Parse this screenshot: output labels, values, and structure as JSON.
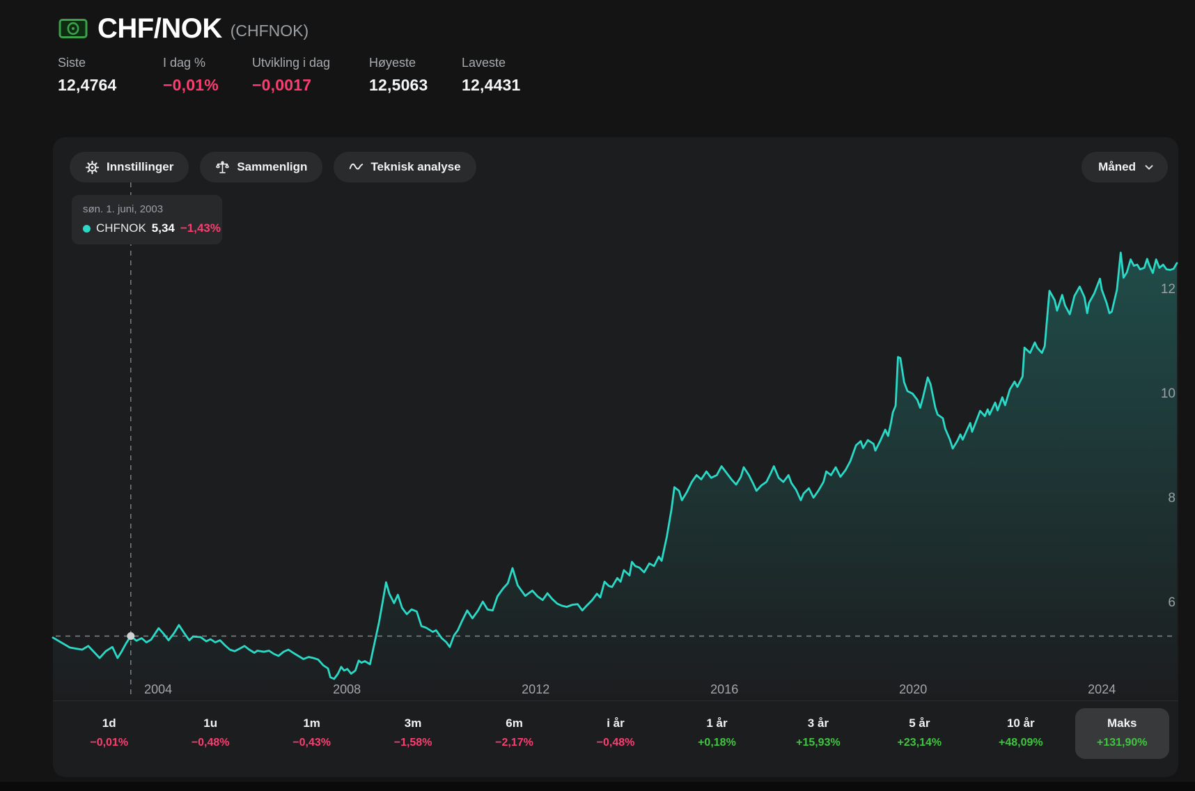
{
  "header": {
    "title": "CHF/NOK",
    "ticker": "(CHFNOK)",
    "icon": "money-banknote-icon"
  },
  "stats": {
    "items": [
      {
        "label": "Siste",
        "value": "12,4764",
        "tone": "neutral"
      },
      {
        "label": "I dag %",
        "value": "−0,01%",
        "tone": "neg"
      },
      {
        "label": "Utvikling i dag",
        "value": "−0,0017",
        "tone": "neg"
      },
      {
        "label": "Høyeste",
        "value": "12,5063",
        "tone": "neutral"
      },
      {
        "label": "Laveste",
        "value": "12,4431",
        "tone": "neutral"
      }
    ]
  },
  "toolbar": {
    "settings_label": "Innstillinger",
    "compare_label": "Sammenlign",
    "technical_label": "Teknisk analyse",
    "interval_label": "Måned"
  },
  "tooltip": {
    "date": "søn. 1. juni, 2003",
    "series": "CHFNOK",
    "value": "5,34",
    "change": "−1,43%"
  },
  "periods": {
    "items": [
      {
        "label": "1d",
        "value": "−0,01%",
        "tone": "neg",
        "selected": false
      },
      {
        "label": "1u",
        "value": "−0,48%",
        "tone": "neg",
        "selected": false
      },
      {
        "label": "1m",
        "value": "−0,43%",
        "tone": "neg",
        "selected": false
      },
      {
        "label": "3m",
        "value": "−1,58%",
        "tone": "neg",
        "selected": false
      },
      {
        "label": "6m",
        "value": "−2,17%",
        "tone": "neg",
        "selected": false
      },
      {
        "label": "i år",
        "value": "−0,48%",
        "tone": "neg",
        "selected": false
      },
      {
        "label": "1 år",
        "value": "+0,18%",
        "tone": "pos",
        "selected": false
      },
      {
        "label": "3 år",
        "value": "+15,93%",
        "tone": "pos",
        "selected": false
      },
      {
        "label": "5 år",
        "value": "+23,14%",
        "tone": "pos",
        "selected": false
      },
      {
        "label": "10 år",
        "value": "+48,09%",
        "tone": "pos",
        "selected": false
      },
      {
        "label": "Maks",
        "value": "+131,90%",
        "tone": "pos",
        "selected": true
      }
    ]
  },
  "colors": {
    "line": "#2bd9c7",
    "negative": "#fb3e71",
    "positive": "#3fc53f",
    "crosshair": "#85878a",
    "y_axis_text": "#9aa0a6",
    "x_axis_text": "#a2a7ab",
    "dot": "#cdd3d3"
  },
  "chart_data": {
    "type": "area",
    "series_name": "CHFNOK",
    "x_domain": [
      2001.77,
      2025.62
    ],
    "y_domain": [
      4.16,
      14.89
    ],
    "x_ticks": [
      2004,
      2008,
      2012,
      2016,
      2020,
      2024
    ],
    "y_ticks": [
      6,
      8,
      10,
      12
    ],
    "crosshair": {
      "t": 2003.42,
      "value": 5.34
    },
    "points": [
      [
        2001.77,
        5.31
      ],
      [
        2002.13,
        5.12
      ],
      [
        2002.39,
        5.08
      ],
      [
        2002.52,
        5.15
      ],
      [
        2002.76,
        4.92
      ],
      [
        2002.89,
        5.05
      ],
      [
        2003.03,
        5.13
      ],
      [
        2003.14,
        4.92
      ],
      [
        2003.23,
        5.05
      ],
      [
        2003.32,
        5.2
      ],
      [
        2003.42,
        5.34
      ],
      [
        2003.54,
        5.25
      ],
      [
        2003.65,
        5.3
      ],
      [
        2003.75,
        5.22
      ],
      [
        2003.85,
        5.27
      ],
      [
        2004.01,
        5.49
      ],
      [
        2004.12,
        5.38
      ],
      [
        2004.22,
        5.26
      ],
      [
        2004.34,
        5.4
      ],
      [
        2004.44,
        5.55
      ],
      [
        2004.55,
        5.4
      ],
      [
        2004.66,
        5.26
      ],
      [
        2004.74,
        5.33
      ],
      [
        2004.9,
        5.32
      ],
      [
        2005.02,
        5.24
      ],
      [
        2005.11,
        5.28
      ],
      [
        2005.21,
        5.22
      ],
      [
        2005.31,
        5.26
      ],
      [
        2005.42,
        5.16
      ],
      [
        2005.52,
        5.08
      ],
      [
        2005.62,
        5.05
      ],
      [
        2005.73,
        5.1
      ],
      [
        2005.83,
        5.15
      ],
      [
        2005.93,
        5.08
      ],
      [
        2006.04,
        5.02
      ],
      [
        2006.1,
        5.06
      ],
      [
        2006.24,
        5.04
      ],
      [
        2006.35,
        5.06
      ],
      [
        2006.45,
        5.0
      ],
      [
        2006.55,
        4.96
      ],
      [
        2006.66,
        5.04
      ],
      [
        2006.76,
        5.08
      ],
      [
        2006.86,
        5.02
      ],
      [
        2006.97,
        4.96
      ],
      [
        2007.08,
        4.9
      ],
      [
        2007.19,
        4.94
      ],
      [
        2007.29,
        4.92
      ],
      [
        2007.39,
        4.89
      ],
      [
        2007.5,
        4.78
      ],
      [
        2007.6,
        4.72
      ],
      [
        2007.65,
        4.55
      ],
      [
        2007.73,
        4.52
      ],
      [
        2007.81,
        4.62
      ],
      [
        2007.88,
        4.75
      ],
      [
        2007.94,
        4.68
      ],
      [
        2008.01,
        4.71
      ],
      [
        2008.09,
        4.62
      ],
      [
        2008.18,
        4.68
      ],
      [
        2008.25,
        4.87
      ],
      [
        2008.31,
        4.83
      ],
      [
        2008.38,
        4.86
      ],
      [
        2008.49,
        4.8
      ],
      [
        2008.56,
        5.1
      ],
      [
        2008.68,
        5.6
      ],
      [
        2008.75,
        5.95
      ],
      [
        2008.83,
        6.37
      ],
      [
        2008.9,
        6.15
      ],
      [
        2009.0,
        5.97
      ],
      [
        2009.08,
        6.13
      ],
      [
        2009.17,
        5.88
      ],
      [
        2009.27,
        5.76
      ],
      [
        2009.37,
        5.85
      ],
      [
        2009.48,
        5.81
      ],
      [
        2009.58,
        5.53
      ],
      [
        2009.68,
        5.5
      ],
      [
        2009.82,
        5.42
      ],
      [
        2009.89,
        5.45
      ],
      [
        2010.01,
        5.3
      ],
      [
        2010.11,
        5.22
      ],
      [
        2010.18,
        5.13
      ],
      [
        2010.27,
        5.35
      ],
      [
        2010.35,
        5.45
      ],
      [
        2010.44,
        5.63
      ],
      [
        2010.55,
        5.83
      ],
      [
        2010.66,
        5.68
      ],
      [
        2010.78,
        5.83
      ],
      [
        2010.88,
        6.0
      ],
      [
        2010.98,
        5.85
      ],
      [
        2011.09,
        5.83
      ],
      [
        2011.19,
        6.1
      ],
      [
        2011.31,
        6.25
      ],
      [
        2011.41,
        6.35
      ],
      [
        2011.51,
        6.64
      ],
      [
        2011.62,
        6.31
      ],
      [
        2011.78,
        6.11
      ],
      [
        2011.93,
        6.21
      ],
      [
        2012.04,
        6.1
      ],
      [
        2012.15,
        6.03
      ],
      [
        2012.25,
        6.16
      ],
      [
        2012.35,
        6.05
      ],
      [
        2012.46,
        5.96
      ],
      [
        2012.56,
        5.92
      ],
      [
        2012.66,
        5.9
      ],
      [
        2012.78,
        5.94
      ],
      [
        2012.89,
        5.95
      ],
      [
        2012.99,
        5.83
      ],
      [
        2013.09,
        5.93
      ],
      [
        2013.2,
        6.03
      ],
      [
        2013.3,
        6.15
      ],
      [
        2013.37,
        6.08
      ],
      [
        2013.46,
        6.38
      ],
      [
        2013.55,
        6.3
      ],
      [
        2013.62,
        6.28
      ],
      [
        2013.73,
        6.45
      ],
      [
        2013.8,
        6.38
      ],
      [
        2013.87,
        6.6
      ],
      [
        2013.99,
        6.5
      ],
      [
        2014.04,
        6.76
      ],
      [
        2014.11,
        6.68
      ],
      [
        2014.2,
        6.65
      ],
      [
        2014.3,
        6.56
      ],
      [
        2014.41,
        6.73
      ],
      [
        2014.51,
        6.68
      ],
      [
        2014.61,
        6.86
      ],
      [
        2014.67,
        6.78
      ],
      [
        2014.78,
        7.24
      ],
      [
        2014.88,
        7.77
      ],
      [
        2014.94,
        8.19
      ],
      [
        2015.04,
        8.12
      ],
      [
        2015.1,
        7.94
      ],
      [
        2015.2,
        8.09
      ],
      [
        2015.31,
        8.29
      ],
      [
        2015.41,
        8.42
      ],
      [
        2015.51,
        8.34
      ],
      [
        2015.62,
        8.49
      ],
      [
        2015.72,
        8.37
      ],
      [
        2015.84,
        8.42
      ],
      [
        2015.94,
        8.59
      ],
      [
        2016.04,
        8.47
      ],
      [
        2016.15,
        8.34
      ],
      [
        2016.25,
        8.24
      ],
      [
        2016.35,
        8.39
      ],
      [
        2016.41,
        8.57
      ],
      [
        2016.52,
        8.42
      ],
      [
        2016.62,
        8.24
      ],
      [
        2016.68,
        8.12
      ],
      [
        2016.78,
        8.22
      ],
      [
        2016.89,
        8.29
      ],
      [
        2016.99,
        8.47
      ],
      [
        2017.05,
        8.59
      ],
      [
        2017.15,
        8.37
      ],
      [
        2017.25,
        8.29
      ],
      [
        2017.36,
        8.42
      ],
      [
        2017.42,
        8.27
      ],
      [
        2017.52,
        8.14
      ],
      [
        2017.62,
        7.94
      ],
      [
        2017.68,
        8.07
      ],
      [
        2017.79,
        8.17
      ],
      [
        2017.89,
        7.99
      ],
      [
        2017.99,
        8.12
      ],
      [
        2018.1,
        8.29
      ],
      [
        2018.16,
        8.49
      ],
      [
        2018.26,
        8.42
      ],
      [
        2018.36,
        8.57
      ],
      [
        2018.46,
        8.39
      ],
      [
        2018.57,
        8.52
      ],
      [
        2018.67,
        8.69
      ],
      [
        2018.79,
        8.99
      ],
      [
        2018.89,
        9.07
      ],
      [
        2018.94,
        8.94
      ],
      [
        2019.04,
        9.09
      ],
      [
        2019.16,
        9.02
      ],
      [
        2019.2,
        8.89
      ],
      [
        2019.31,
        9.09
      ],
      [
        2019.41,
        9.29
      ],
      [
        2019.47,
        9.17
      ],
      [
        2019.53,
        9.42
      ],
      [
        2019.57,
        9.62
      ],
      [
        2019.63,
        9.75
      ],
      [
        2019.68,
        10.68
      ],
      [
        2019.73,
        10.66
      ],
      [
        2019.81,
        10.2
      ],
      [
        2019.88,
        10.03
      ],
      [
        2019.99,
        9.98
      ],
      [
        2020.09,
        9.86
      ],
      [
        2020.15,
        9.71
      ],
      [
        2020.21,
        9.91
      ],
      [
        2020.31,
        10.29
      ],
      [
        2020.37,
        10.16
      ],
      [
        2020.47,
        9.71
      ],
      [
        2020.52,
        9.58
      ],
      [
        2020.63,
        9.51
      ],
      [
        2020.68,
        9.31
      ],
      [
        2020.78,
        9.1
      ],
      [
        2020.84,
        8.93
      ],
      [
        2020.94,
        9.08
      ],
      [
        2021.0,
        9.2
      ],
      [
        2021.05,
        9.1
      ],
      [
        2021.15,
        9.3
      ],
      [
        2021.21,
        9.42
      ],
      [
        2021.25,
        9.25
      ],
      [
        2021.37,
        9.53
      ],
      [
        2021.42,
        9.65
      ],
      [
        2021.52,
        9.55
      ],
      [
        2021.58,
        9.68
      ],
      [
        2021.62,
        9.58
      ],
      [
        2021.74,
        9.81
      ],
      [
        2021.79,
        9.66
      ],
      [
        2021.89,
        9.91
      ],
      [
        2021.95,
        9.76
      ],
      [
        2022.05,
        10.06
      ],
      [
        2022.15,
        10.21
      ],
      [
        2022.21,
        10.11
      ],
      [
        2022.32,
        10.31
      ],
      [
        2022.36,
        10.86
      ],
      [
        2022.48,
        10.76
      ],
      [
        2022.58,
        10.96
      ],
      [
        2022.63,
        10.86
      ],
      [
        2022.73,
        10.76
      ],
      [
        2022.79,
        10.89
      ],
      [
        2022.89,
        11.95
      ],
      [
        2023.0,
        11.77
      ],
      [
        2023.05,
        11.57
      ],
      [
        2023.16,
        11.87
      ],
      [
        2023.22,
        11.67
      ],
      [
        2023.32,
        11.5
      ],
      [
        2023.42,
        11.85
      ],
      [
        2023.53,
        12.03
      ],
      [
        2023.63,
        11.83
      ],
      [
        2023.69,
        11.52
      ],
      [
        2023.73,
        11.72
      ],
      [
        2023.84,
        11.9
      ],
      [
        2023.96,
        12.18
      ],
      [
        2024.0,
        11.97
      ],
      [
        2024.1,
        11.72
      ],
      [
        2024.16,
        11.52
      ],
      [
        2024.21,
        11.55
      ],
      [
        2024.32,
        11.97
      ],
      [
        2024.4,
        12.68
      ],
      [
        2024.46,
        12.2
      ],
      [
        2024.53,
        12.3
      ],
      [
        2024.61,
        12.55
      ],
      [
        2024.68,
        12.43
      ],
      [
        2024.75,
        12.45
      ],
      [
        2024.81,
        12.36
      ],
      [
        2024.9,
        12.39
      ],
      [
        2024.96,
        12.56
      ],
      [
        2025.0,
        12.45
      ],
      [
        2025.08,
        12.29
      ],
      [
        2025.15,
        12.55
      ],
      [
        2025.22,
        12.39
      ],
      [
        2025.3,
        12.45
      ],
      [
        2025.37,
        12.36
      ],
      [
        2025.45,
        12.35
      ],
      [
        2025.52,
        12.37
      ],
      [
        2025.59,
        12.48
      ]
    ]
  }
}
